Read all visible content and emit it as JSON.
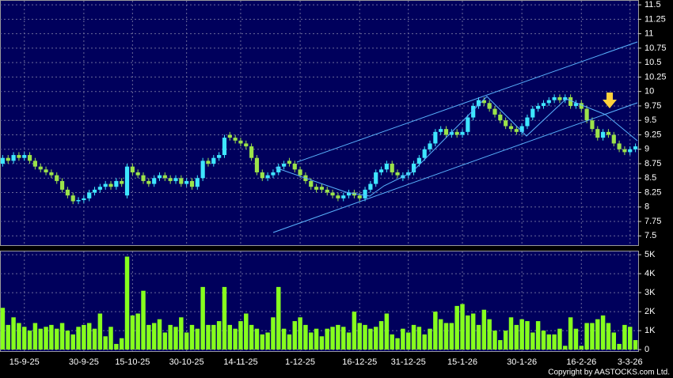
{
  "chart_data": [
    {
      "type": "candlestick",
      "open": [
        8.75,
        8.85,
        8.8,
        8.9,
        8.85,
        8.9,
        8.8,
        8.7,
        8.65,
        8.6,
        8.55,
        8.45,
        8.3,
        8.2,
        8.1,
        8.12,
        8.15,
        8.25,
        8.3,
        8.35,
        8.4,
        8.35,
        8.45,
        8.2,
        8.7,
        8.6,
        8.55,
        8.45,
        8.4,
        8.5,
        8.55,
        8.5,
        8.45,
        8.5,
        8.4,
        8.45,
        8.35,
        8.5,
        8.8,
        8.75,
        8.85,
        8.9,
        9.25,
        9.2,
        9.15,
        9.1,
        9.05,
        8.85,
        8.6,
        8.5,
        8.55,
        8.6,
        8.7,
        8.8,
        8.75,
        8.65,
        8.55,
        8.45,
        8.35,
        8.35,
        8.3,
        8.25,
        8.2,
        8.15,
        8.2,
        8.25,
        8.2,
        8.15,
        8.3,
        8.4,
        8.6,
        8.65,
        8.75,
        8.6,
        8.5,
        8.55,
        8.6,
        8.75,
        8.85,
        9.0,
        9.1,
        9.3,
        9.35,
        9.25,
        9.3,
        9.25,
        9.3,
        9.55,
        9.75,
        9.85,
        9.8,
        9.7,
        9.6,
        9.5,
        9.4,
        9.35,
        9.3,
        9.4,
        9.55,
        9.7,
        9.75,
        9.8,
        9.85,
        9.9,
        9.85,
        9.9,
        9.75,
        9.8,
        9.7,
        9.5,
        9.35,
        9.2,
        9.3,
        9.25,
        9.1,
        9.0,
        8.95,
        9.0
      ],
      "high": [
        8.9,
        8.9,
        8.95,
        8.95,
        8.95,
        8.95,
        8.85,
        8.75,
        8.7,
        8.65,
        8.6,
        8.5,
        8.35,
        8.25,
        8.17,
        8.2,
        8.3,
        8.35,
        8.4,
        8.45,
        8.45,
        8.5,
        8.5,
        8.75,
        8.75,
        8.65,
        8.6,
        8.5,
        8.55,
        8.6,
        8.6,
        8.55,
        8.55,
        8.55,
        8.5,
        8.5,
        8.55,
        8.85,
        8.85,
        8.9,
        8.95,
        9.25,
        9.3,
        9.25,
        9.2,
        9.15,
        9.1,
        8.9,
        8.65,
        8.6,
        8.65,
        8.75,
        8.8,
        8.85,
        8.8,
        8.7,
        8.6,
        8.5,
        8.4,
        8.4,
        8.35,
        8.3,
        8.25,
        8.25,
        8.3,
        8.3,
        8.25,
        8.35,
        8.45,
        8.65,
        8.7,
        8.8,
        8.8,
        8.65,
        8.6,
        8.65,
        8.8,
        8.9,
        9.05,
        9.15,
        9.35,
        9.4,
        9.4,
        9.35,
        9.35,
        9.35,
        9.6,
        9.8,
        9.9,
        9.9,
        9.85,
        9.75,
        9.65,
        9.55,
        9.45,
        9.4,
        9.45,
        9.6,
        9.75,
        9.8,
        9.85,
        9.9,
        9.95,
        9.95,
        9.95,
        9.95,
        9.85,
        9.85,
        9.75,
        9.55,
        9.4,
        9.35,
        9.35,
        9.3,
        9.15,
        9.05,
        9.05,
        9.1
      ],
      "low": [
        8.7,
        8.75,
        8.75,
        8.8,
        8.8,
        8.75,
        8.65,
        8.6,
        8.55,
        8.5,
        8.4,
        8.25,
        8.15,
        8.05,
        8.05,
        8.07,
        8.1,
        8.2,
        8.25,
        8.3,
        8.3,
        8.3,
        8.35,
        8.15,
        8.55,
        8.5,
        8.4,
        8.35,
        8.35,
        8.45,
        8.45,
        8.4,
        8.4,
        8.35,
        8.35,
        8.3,
        8.3,
        8.45,
        8.7,
        8.7,
        8.8,
        8.85,
        9.15,
        9.1,
        9.05,
        9.0,
        8.8,
        8.55,
        8.45,
        8.45,
        8.5,
        8.55,
        8.65,
        8.7,
        8.6,
        8.5,
        8.4,
        8.3,
        8.25,
        8.25,
        8.2,
        8.15,
        8.1,
        8.1,
        8.15,
        8.15,
        8.1,
        8.1,
        8.25,
        8.35,
        8.55,
        8.6,
        8.55,
        8.5,
        8.45,
        8.5,
        8.55,
        8.7,
        8.8,
        8.95,
        9.05,
        9.25,
        9.2,
        9.2,
        9.2,
        9.2,
        9.25,
        9.5,
        9.7,
        9.75,
        9.65,
        9.55,
        9.45,
        9.35,
        9.3,
        9.25,
        9.25,
        9.35,
        9.5,
        9.65,
        9.7,
        9.75,
        9.8,
        9.8,
        9.8,
        9.7,
        9.7,
        9.65,
        9.45,
        9.3,
        9.15,
        9.15,
        9.2,
        9.05,
        8.95,
        8.9,
        8.9,
        8.95
      ],
      "close": [
        8.85,
        8.8,
        8.9,
        8.85,
        8.9,
        8.8,
        8.7,
        8.65,
        8.6,
        8.55,
        8.45,
        8.3,
        8.2,
        8.1,
        8.12,
        8.15,
        8.25,
        8.3,
        8.35,
        8.4,
        8.35,
        8.45,
        8.4,
        8.7,
        8.6,
        8.55,
        8.45,
        8.4,
        8.5,
        8.55,
        8.5,
        8.45,
        8.5,
        8.4,
        8.45,
        8.35,
        8.5,
        8.8,
        8.75,
        8.85,
        8.9,
        9.2,
        9.2,
        9.15,
        9.1,
        9.05,
        8.85,
        8.6,
        8.5,
        8.55,
        8.6,
        8.7,
        8.75,
        8.75,
        8.65,
        8.55,
        8.45,
        8.35,
        8.3,
        8.3,
        8.25,
        8.2,
        8.15,
        8.2,
        8.25,
        8.2,
        8.15,
        8.3,
        8.4,
        8.6,
        8.65,
        8.75,
        8.6,
        8.55,
        8.55,
        8.6,
        8.75,
        8.85,
        9.0,
        9.1,
        9.3,
        9.35,
        9.25,
        9.3,
        9.25,
        9.3,
        9.55,
        9.75,
        9.85,
        9.8,
        9.7,
        9.6,
        9.5,
        9.4,
        9.35,
        9.3,
        9.4,
        9.55,
        9.7,
        9.75,
        9.8,
        9.85,
        9.9,
        9.85,
        9.9,
        9.75,
        9.8,
        9.7,
        9.5,
        9.35,
        9.2,
        9.3,
        9.25,
        9.1,
        9.0,
        8.95,
        9.0,
        9.05
      ],
      "up_color": "#3ee6ff",
      "down_color": "#9be34a",
      "ylim": [
        7.34,
        11.57
      ],
      "yticks": [
        7.5,
        7.75,
        8,
        8.25,
        8.5,
        8.75,
        9,
        9.25,
        9.5,
        9.75,
        10,
        10.25,
        10.5,
        10.75,
        11,
        11.25,
        11.5
      ],
      "grid": true
    },
    {
      "type": "bar",
      "categories": [
        null,
        null,
        null,
        null,
        "15-9-25",
        null,
        null,
        null,
        null,
        null,
        null,
        null,
        null,
        null,
        null,
        "30-9-25",
        null,
        null,
        null,
        null,
        null,
        null,
        null,
        null,
        "15-10-25",
        null,
        null,
        null,
        null,
        null,
        null,
        null,
        null,
        null,
        "30-10-25",
        null,
        null,
        null,
        null,
        null,
        null,
        null,
        null,
        null,
        "14-11-25",
        null,
        null,
        null,
        null,
        null,
        null,
        null,
        null,
        null,
        null,
        "1-12-25",
        null,
        null,
        null,
        null,
        null,
        null,
        null,
        null,
        null,
        null,
        "16-12-25",
        null,
        null,
        null,
        null,
        null,
        null,
        null,
        null,
        "31-12-25",
        null,
        null,
        null,
        null,
        null,
        null,
        null,
        null,
        null,
        "15-1-26",
        null,
        null,
        null,
        null,
        null,
        null,
        null,
        null,
        null,
        null,
        "30-1-26",
        null,
        null,
        null,
        null,
        null,
        null,
        null,
        null,
        null,
        null,
        "16-2-26",
        null,
        null,
        null,
        null,
        null,
        null,
        null,
        null,
        "3-3-26",
        null
      ],
      "values": [
        2200,
        1300,
        1700,
        1400,
        1200,
        1000,
        1400,
        1100,
        1200,
        1300,
        1100,
        1400,
        1000,
        800,
        1200,
        1300,
        1400,
        1100,
        1900,
        700,
        1200,
        300,
        600,
        4900,
        1800,
        1900,
        3100,
        1300,
        1400,
        1600,
        900,
        1300,
        1200,
        1700,
        900,
        1300,
        1100,
        3300,
        1300,
        1300,
        1500,
        3300,
        1300,
        1100,
        1500,
        1900,
        1300,
        1100,
        800,
        900,
        1700,
        3300,
        1100,
        800,
        1500,
        1700,
        1300,
        900,
        1100,
        700,
        1100,
        1200,
        1300,
        1200,
        900,
        2000,
        1400,
        1300,
        1100,
        1200,
        1500,
        1900,
        800,
        600,
        1100,
        900,
        1300,
        1200,
        800,
        1100,
        2000,
        1600,
        1400,
        1400,
        2300,
        2400,
        1800,
        1900,
        1300,
        2100,
        1600,
        1000,
        500,
        1000,
        1700,
        1300,
        1600,
        1500,
        900,
        1500,
        1000,
        800,
        800,
        1100,
        200,
        1700,
        1100,
        200,
        1400,
        1400,
        1600,
        1800,
        1400,
        900,
        300,
        1300,
        1200,
        500
      ],
      "color": "#86ff1e",
      "ylim": [
        -80,
        5170
      ],
      "yticks": [
        0,
        {
          "value": 1000,
          "label": "1K"
        },
        {
          "value": 2000,
          "label": "2K"
        },
        {
          "value": 3000,
          "label": "3K"
        },
        {
          "value": 4000,
          "label": "4K"
        },
        {
          "value": 5000,
          "label": "5K"
        }
      ],
      "grid": true
    }
  ],
  "copyright": "Copyright by AASTOCKS.com Ltd."
}
